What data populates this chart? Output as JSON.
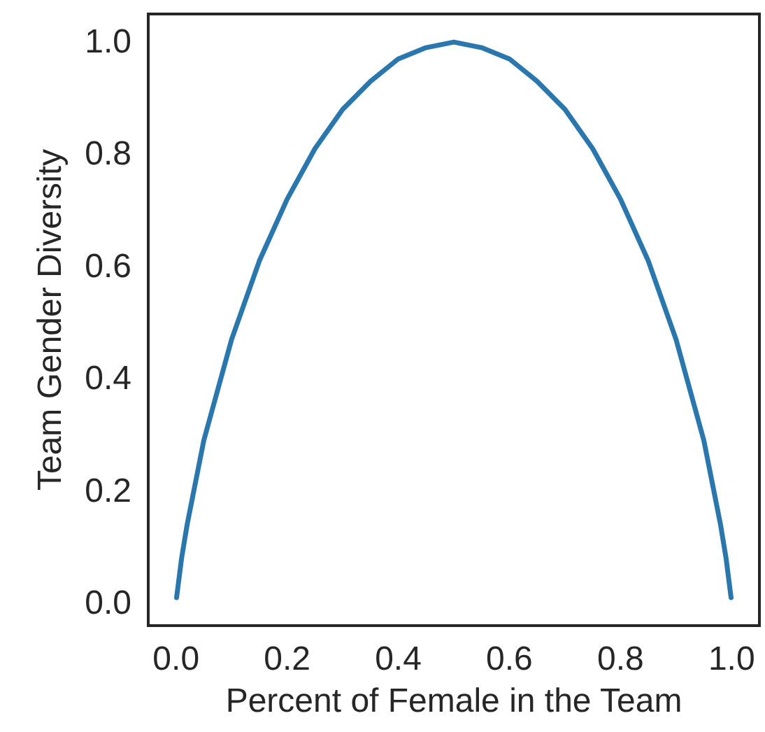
{
  "chart_data": {
    "type": "line",
    "xlabel": "Percent of Female in the Team",
    "ylabel": "Team Gender Diversity",
    "x": [
      0.001,
      0.01,
      0.02,
      0.05,
      0.1,
      0.15,
      0.2,
      0.25,
      0.3,
      0.35,
      0.4,
      0.45,
      0.5,
      0.55,
      0.6,
      0.65,
      0.7,
      0.75,
      0.8,
      0.85,
      0.9,
      0.95,
      0.98,
      0.99,
      0.999
    ],
    "series": [
      {
        "color": "#2a77ad",
        "values": [
          0.01,
          0.08,
          0.14,
          0.29,
          0.47,
          0.61,
          0.72,
          0.81,
          0.88,
          0.93,
          0.97,
          0.99,
          1.0,
          0.99,
          0.97,
          0.93,
          0.88,
          0.81,
          0.72,
          0.61,
          0.47,
          0.29,
          0.14,
          0.08,
          0.01
        ]
      }
    ],
    "xlim": [
      -0.05,
      1.05
    ],
    "xticks": [
      {
        "value": 0,
        "label": "0.0"
      },
      {
        "value": 0.2,
        "label": "0.2"
      },
      {
        "value": 0.4,
        "label": "0.4"
      },
      {
        "value": 0.6,
        "label": "0.6"
      },
      {
        "value": 0.8,
        "label": "0.8"
      },
      {
        "value": 1,
        "label": "1.0"
      }
    ],
    "ylim": [
      -0.04,
      1.05
    ],
    "yticks": [
      {
        "value": 0,
        "label": "0.0"
      },
      {
        "value": 0.2,
        "label": "0.2"
      },
      {
        "value": 0.4,
        "label": "0.4"
      },
      {
        "value": 0.6,
        "label": "0.6"
      },
      {
        "value": 0.8,
        "label": "0.8"
      },
      {
        "value": 1,
        "label": "1.0"
      }
    ],
    "marker": "none",
    "line_style": "solid"
  }
}
